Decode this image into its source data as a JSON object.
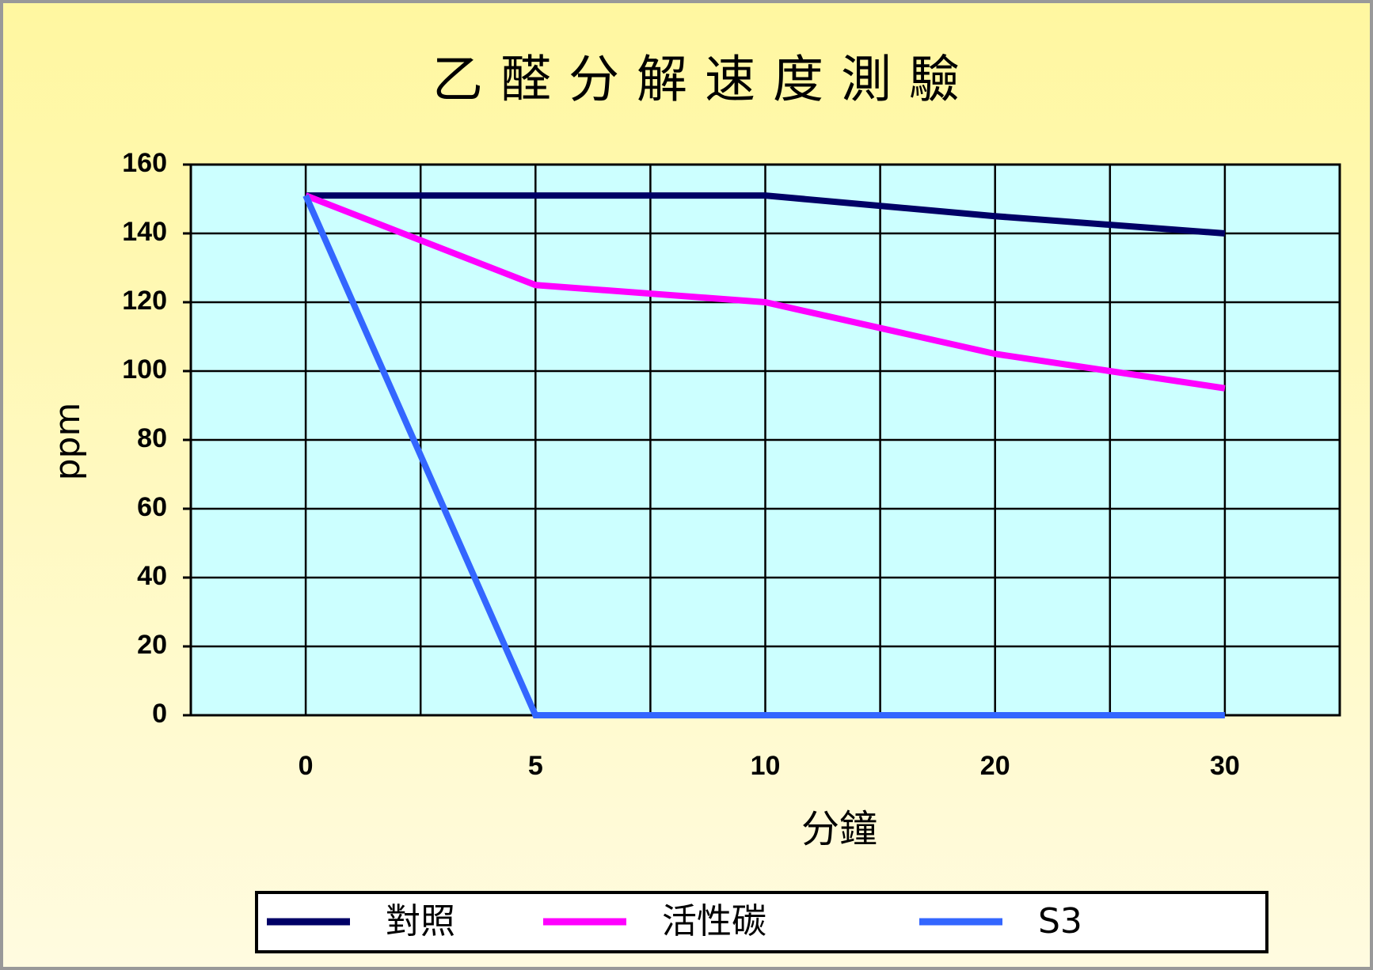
{
  "chart_data": {
    "type": "line",
    "title": "乙醛分解速度測驗",
    "x_label": "分鐘",
    "y_label": "ppm",
    "categories": [
      "0",
      "5",
      "10",
      "20",
      "30"
    ],
    "series": [
      {
        "name": "對照",
        "color": "#000066",
        "values": [
          151,
          151,
          151,
          145,
          140
        ]
      },
      {
        "name": "活性碳",
        "color": "#ff00ff",
        "values": [
          151,
          125,
          120,
          105,
          95
        ]
      },
      {
        "name": "S3",
        "color": "#3366ff",
        "values": [
          151,
          0,
          0,
          0,
          0
        ]
      }
    ],
    "ylim": [
      0,
      160
    ],
    "yticks": [
      0,
      20,
      40,
      60,
      80,
      100,
      120,
      140,
      160
    ],
    "grid": true
  }
}
